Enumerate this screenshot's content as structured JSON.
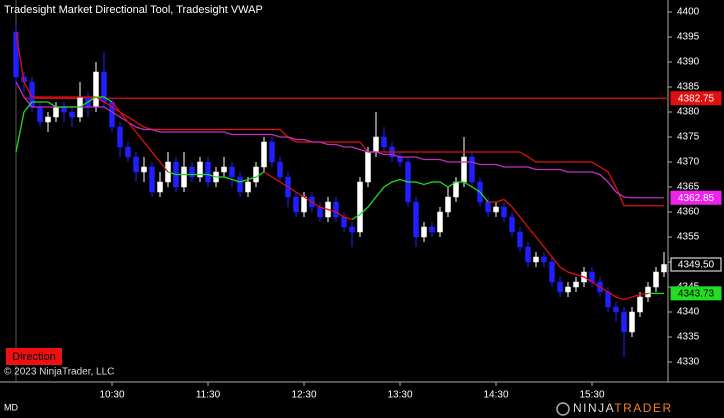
{
  "chart_data": {
    "type": "candlestick",
    "title": "Tradesight Market Directional Tool, Tradesight VWAP",
    "categories": [
      null,
      null,
      null,
      null,
      null,
      null,
      null,
      null,
      null,
      null,
      null,
      null,
      "10:30",
      null,
      null,
      null,
      null,
      null,
      null,
      null,
      null,
      null,
      null,
      null,
      "11:30",
      null,
      null,
      null,
      null,
      null,
      null,
      null,
      null,
      null,
      null,
      null,
      "12:30",
      null,
      null,
      null,
      null,
      null,
      null,
      null,
      null,
      null,
      null,
      null,
      "13:30",
      null,
      null,
      null,
      null,
      null,
      null,
      null,
      null,
      null,
      null,
      null,
      "14:30",
      null,
      null,
      null,
      null,
      null,
      null,
      null,
      null,
      null,
      null,
      null,
      "15:30",
      null,
      null,
      null,
      null,
      null,
      null,
      null,
      null,
      null
    ],
    "open": [
      4396,
      4387,
      4386,
      4381,
      4378,
      4379,
      4381,
      4380,
      4379,
      4383,
      4381,
      4388,
      4382,
      4377,
      4373,
      4371,
      4368,
      4369,
      4364,
      4366,
      4370,
      4365,
      4369,
      4367,
      4370,
      4366,
      4368,
      4369,
      4367,
      4364,
      4366,
      4369,
      4374,
      4370,
      4367,
      4363,
      4360,
      4363,
      4361,
      4359,
      4362,
      4359,
      4357,
      4356,
      4366,
      4372,
      4375,
      4373,
      4371,
      4370,
      4362,
      4355,
      4357,
      4356,
      4360,
      4363,
      4366,
      4371,
      4366,
      4362,
      4360,
      4361,
      4359,
      4356,
      4353,
      4350,
      4351,
      4350,
      4346,
      4344,
      4345,
      4346,
      4348,
      4346,
      4344,
      4341,
      4340,
      4336,
      4340,
      4343,
      4345,
      4348
    ],
    "high": [
      4397,
      4388,
      4387,
      4382,
      4380,
      4382,
      4382,
      4381,
      4386,
      4384,
      4390,
      4392,
      4383,
      4378,
      4374,
      4372,
      4371,
      4370,
      4368,
      4372,
      4371,
      4372,
      4370,
      4371,
      4371,
      4369,
      4371,
      4370,
      4368,
      4367,
      4370,
      4375,
      4375,
      4371,
      4368,
      4364,
      4364,
      4364,
      4362,
      4363,
      4363,
      4360,
      4358,
      4367,
      4373,
      4380,
      4377,
      4374,
      4372,
      4371,
      4363,
      4358,
      4358,
      4361,
      4365,
      4367,
      4375,
      4372,
      4367,
      4363,
      4362,
      4362,
      4360,
      4357,
      4354,
      4352,
      4352,
      4351,
      4347,
      4346,
      4347,
      4349,
      4349,
      4347,
      4345,
      4342,
      4341,
      4341,
      4344,
      4346,
      4349,
      4352
    ],
    "low": [
      4385,
      4384,
      4380,
      4377,
      4376,
      4378,
      4378,
      4377,
      4378,
      4379,
      4380,
      4381,
      4376,
      4371,
      4370,
      4366,
      4366,
      4363,
      4363,
      4365,
      4364,
      4364,
      4366,
      4366,
      4365,
      4365,
      4367,
      4365,
      4363,
      4363,
      4365,
      4368,
      4369,
      4366,
      4361,
      4359,
      4359,
      4360,
      4358,
      4358,
      4358,
      4356,
      4353,
      4355,
      4365,
      4371,
      4372,
      4370,
      4369,
      4361,
      4353,
      4354,
      4355,
      4355,
      4359,
      4362,
      4365,
      4365,
      4361,
      4359,
      4359,
      4358,
      4355,
      4352,
      4349,
      4349,
      4349,
      4345,
      4343,
      4343,
      4344,
      4345,
      4345,
      4343,
      4340,
      4338,
      4331,
      4335,
      4339,
      4342,
      4344,
      4347
    ],
    "close": [
      4387,
      4386,
      4381,
      4378,
      4379,
      4381,
      4380,
      4379,
      4383,
      4381,
      4388,
      4382,
      4377,
      4373,
      4371,
      4368,
      4369,
      4364,
      4366,
      4370,
      4365,
      4369,
      4367,
      4370,
      4366,
      4368,
      4369,
      4367,
      4364,
      4366,
      4369,
      4374,
      4370,
      4367,
      4363,
      4360,
      4363,
      4361,
      4359,
      4362,
      4359,
      4357,
      4356,
      4366,
      4372,
      4375,
      4373,
      4371,
      4370,
      4362,
      4355,
      4357,
      4356,
      4360,
      4363,
      4366,
      4371,
      4366,
      4362,
      4360,
      4361,
      4359,
      4356,
      4353,
      4350,
      4351,
      4350,
      4346,
      4344,
      4345,
      4346,
      4348,
      4346,
      4344,
      4341,
      4340,
      4336,
      4340,
      4343,
      4345,
      4348,
      4349.5
    ],
    "up_color": "#ffffff",
    "down_color": "#1f1fff",
    "overlays": [
      {
        "color": "#e01010",
        "values": [
          4396,
          4386,
          4383,
          4383,
          4383,
          4383,
          4383,
          4383,
          4383,
          4383,
          4383,
          4382,
          4381,
          4380,
          4379,
          4378,
          4377,
          4376.5,
          4376.5,
          4376.5,
          4376.5,
          4376.5,
          4376.5,
          4376.5,
          4376.5,
          4376.5,
          4376.5,
          4376.5,
          4376.5,
          4376.5,
          4376.5,
          4376.5,
          4376.5,
          4376.5,
          4375,
          4374,
          4374,
          4374,
          4374,
          4374,
          4374,
          4374,
          4374,
          4374,
          4372,
          4372,
          4372,
          4372,
          4372,
          4372,
          4372,
          4372,
          4372,
          4372,
          4372,
          4372,
          4372,
          4372,
          4372,
          4372,
          4372,
          4372,
          4372,
          4372,
          4371,
          4370,
          4370,
          4370,
          4370,
          4370,
          4370,
          4370,
          4370,
          4369,
          4368,
          4365,
          4361.25,
          4361.25,
          4361.25,
          4361.25,
          4361.25,
          4361.25
        ]
      },
      {
        "color": "#c030c0",
        "values": [
          4386,
          4383,
          4381,
          4381,
          4381,
          4381,
          4381,
          4381,
          4381,
          4381,
          4381,
          4381,
          4380,
          4379,
          4378,
          4377,
          4376.5,
          4376.5,
          4376,
          4376,
          4376,
          4376,
          4376,
          4376,
          4376,
          4376,
          4376,
          4375.5,
          4375.5,
          4375.5,
          4375.5,
          4375.5,
          4375.5,
          4375,
          4375,
          4374.5,
          4374.5,
          4374,
          4374,
          4373.5,
          4373.5,
          4373,
          4373,
          4372.5,
          4372,
          4372,
          4371.5,
          4371.5,
          4371,
          4371,
          4371,
          4370.5,
          4370.5,
          4370.5,
          4370,
          4370,
          4370,
          4370,
          4369.5,
          4369.5,
          4369.5,
          4369,
          4369,
          4369,
          4369,
          4368.5,
          4368.5,
          4368.5,
          4368.5,
          4368,
          4368,
          4368,
          4368,
          4367.5,
          4366,
          4364,
          4363,
          4362.85,
          4362.85,
          4362.85,
          4362.85,
          4362.85
        ]
      },
      {
        "color": "#22dd22",
        "values": [
          4372,
          4380,
          4382,
          4382,
          4382,
          4381,
          4381,
          4381,
          4381,
          4382,
          4383,
          4383,
          4382,
          null,
          null,
          null,
          null,
          null,
          null,
          4368,
          4367.5,
          4367.5,
          4367.5,
          4367.5,
          4367.5,
          4367,
          4367,
          4366.5,
          4366,
          4366.5,
          4367,
          4368,
          null,
          null,
          null,
          null,
          null,
          null,
          null,
          null,
          null,
          null,
          4358.5,
          4359.5,
          4361,
          4363,
          4365,
          4366,
          4366.5,
          4366,
          4366,
          4365.5,
          4366,
          4366,
          4365,
          4366,
          4366,
          4365,
          4364,
          4362,
          null,
          null,
          null,
          null,
          null,
          null,
          null,
          null,
          null,
          null,
          null,
          null,
          null,
          null,
          null,
          null,
          null,
          null,
          null,
          4343.7,
          4343.73,
          4343.73
        ]
      },
      {
        "color": "#e01010",
        "values": [
          null,
          null,
          null,
          null,
          null,
          null,
          null,
          null,
          null,
          null,
          null,
          null,
          4382,
          4380,
          4378,
          4376,
          4374,
          4372,
          4370,
          4368,
          null,
          null,
          null,
          null,
          null,
          null,
          null,
          null,
          null,
          null,
          null,
          4368,
          4367,
          4366,
          4365,
          4364,
          4363,
          4362,
          4361,
          4360.5,
          4360,
          4359,
          4358.5,
          null,
          null,
          null,
          null,
          null,
          null,
          null,
          null,
          null,
          null,
          null,
          null,
          null,
          null,
          null,
          null,
          4362,
          4362,
          4362.5,
          4361,
          4359,
          4357,
          4355,
          4353,
          4351,
          4349,
          4348,
          4347.5,
          4347,
          4346,
          4345,
          4344,
          4343,
          4342.5,
          4343,
          4343.5,
          4343.7,
          null,
          null
        ]
      }
    ],
    "markers": [
      {
        "value": 4382.75,
        "color": "#e01010",
        "text_color": "#ffffff",
        "line": true
      },
      {
        "value": 4362.85,
        "color": "#ee22ee",
        "text_color": "#ffffff"
      },
      {
        "value": 4349.5,
        "label": "4349.50",
        "color": "#000000",
        "text_color": "#ffffff"
      },
      {
        "value": 4343.73,
        "color": "#22dd22",
        "text_color": "#000000"
      }
    ],
    "ylim": [
      4326,
      4402
    ],
    "yticks": [
      4330,
      4335,
      4340,
      4345,
      4350,
      4355,
      4360,
      4365,
      4370,
      4375,
      4380,
      4385,
      4390,
      4395,
      4400
    ]
  },
  "ui": {
    "button": "Direction",
    "copyright": "© 2023 NinjaTrader, LLC",
    "instrument": "MD",
    "logo_left": "NINJA",
    "logo_right": "TRADER"
  }
}
